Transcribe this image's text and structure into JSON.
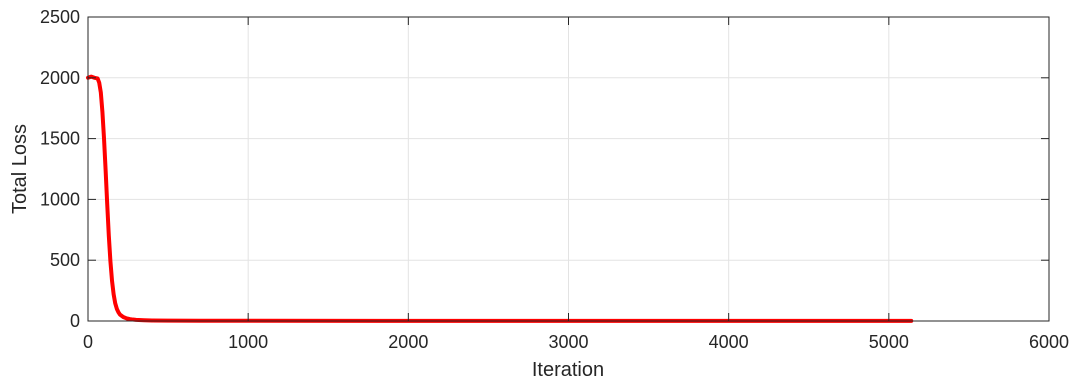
{
  "chart_data": {
    "type": "line",
    "title": "",
    "xlabel": "Iteration",
    "ylabel": "Total Loss",
    "xlim": [
      0,
      6000
    ],
    "ylim": [
      0,
      2500
    ],
    "xticks": [
      0,
      1000,
      2000,
      3000,
      4000,
      5000,
      6000
    ],
    "yticks": [
      0,
      500,
      1000,
      1500,
      2000,
      2500
    ],
    "xtick_labels": [
      "0",
      "1000",
      "2000",
      "3000",
      "4000",
      "5000",
      "6000"
    ],
    "ytick_labels": [
      "0",
      "500",
      "1000",
      "1500",
      "2000",
      "2500"
    ],
    "grid": true,
    "legend": "none",
    "series": [
      {
        "color": "#ff0000",
        "x": [
          0,
          20,
          40,
          60,
          70,
          80,
          90,
          100,
          110,
          120,
          130,
          140,
          150,
          160,
          170,
          180,
          190,
          200,
          220,
          240,
          260,
          280,
          300,
          350,
          400,
          500,
          700,
          1000,
          2000,
          3000,
          4000,
          5000,
          5140
        ],
        "y": [
          2000,
          2010,
          2000,
          1995,
          1960,
          1880,
          1720,
          1500,
          1240,
          960,
          700,
          490,
          330,
          220,
          145,
          100,
          72,
          52,
          33,
          22,
          16,
          12,
          9,
          6,
          4,
          3,
          2,
          2,
          1,
          1,
          1,
          1,
          1
        ]
      }
    ]
  }
}
